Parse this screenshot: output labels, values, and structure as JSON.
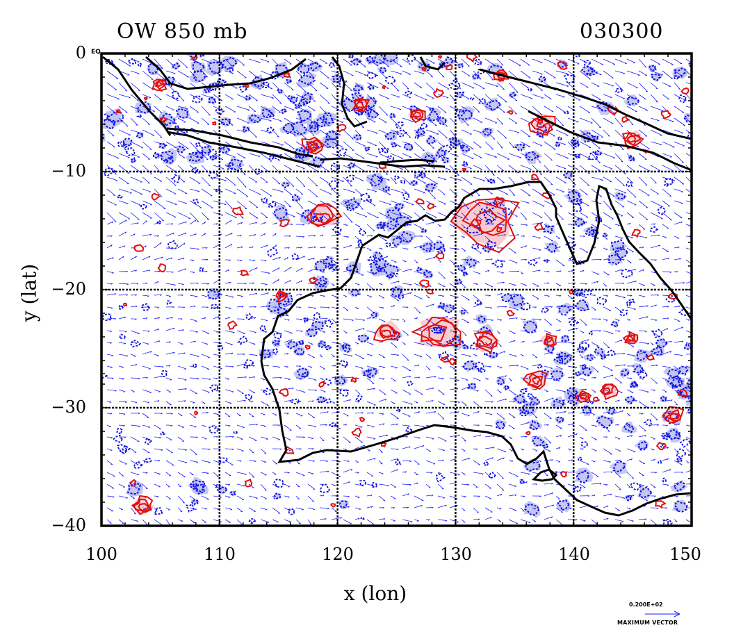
{
  "title_left": "OW 850 mb",
  "title_right": "030300",
  "y_axis": {
    "label": "y (lat)",
    "ticks": [
      "0",
      "−10",
      "−20",
      "−30",
      "−40"
    ],
    "values": [
      0,
      -10,
      -20,
      -30,
      -40
    ],
    "range": [
      -40,
      0
    ]
  },
  "x_axis": {
    "label": "x (lon)",
    "ticks": [
      "100",
      "110",
      "120",
      "130",
      "140",
      "150"
    ],
    "values": [
      100,
      110,
      120,
      130,
      140,
      150
    ],
    "range": [
      100,
      150
    ]
  },
  "equator_label": "EQ",
  "reference_vector": {
    "value": "0.200E+02",
    "label": "MAXIMUM VECTOR"
  },
  "colors": {
    "coast": "#000000",
    "wind_vectors": "#1a1aff",
    "negative_contour": "#1010e0",
    "negative_fill": "#b8bdf0",
    "positive_contour": "#e01010",
    "positive_fill": "#f7c8cc",
    "grid": "#000000"
  }
}
